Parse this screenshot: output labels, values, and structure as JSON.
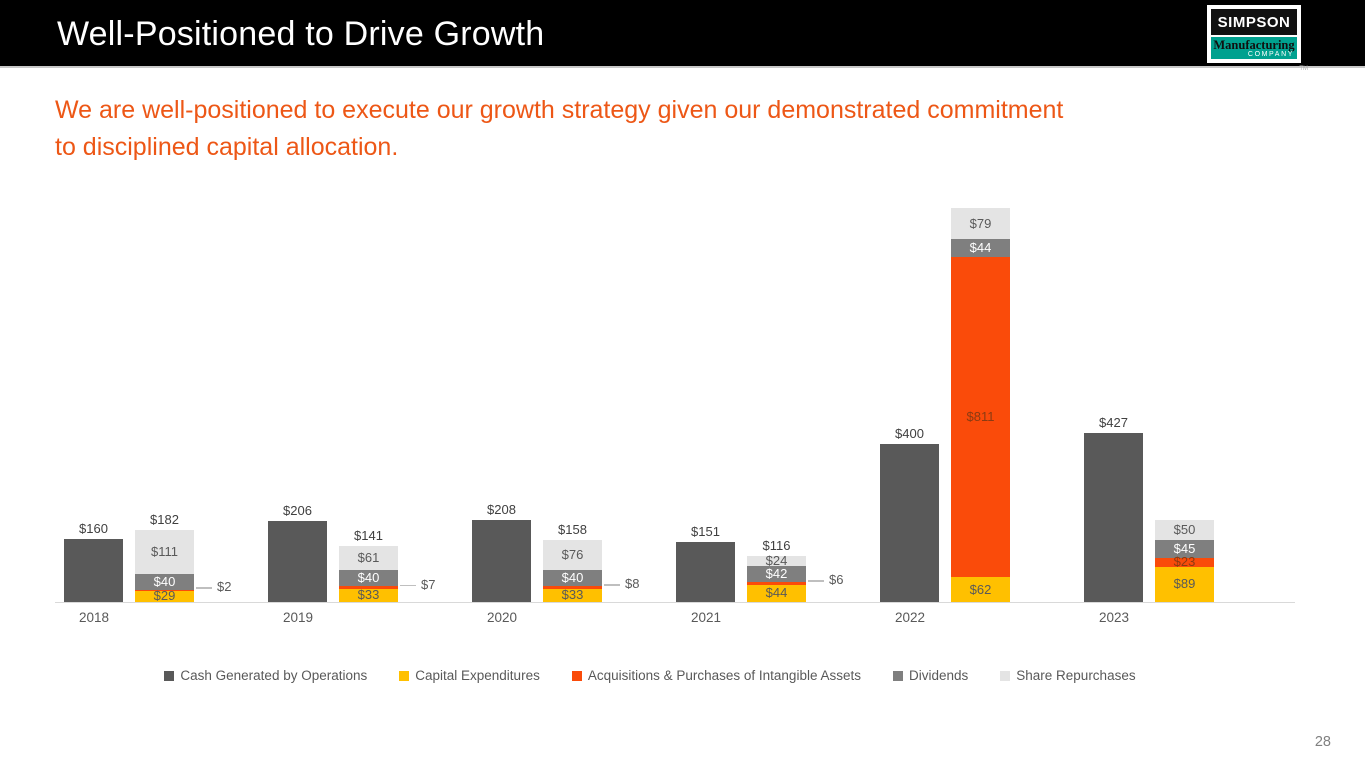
{
  "header": {
    "title": "Well-Positioned to Drive Growth"
  },
  "logo": {
    "line1": "SIMPSON",
    "line2": "Manufacturing",
    "line3": "COMPANY",
    "tm": "TM"
  },
  "subtitle": {
    "line1": "We are well-positioned to execute our growth strategy given our demonstrated commitment",
    "line2": "to disciplined capital allocation."
  },
  "page_number": "28",
  "colors": {
    "ops": "#595959",
    "capex": "#FFC000",
    "acq": "#FA4B0A",
    "div": "#7F7F7F",
    "repurch": "#E4E4E4",
    "segment_label_on_capex": "#595959",
    "segment_label_on_acq": "#8A3B12",
    "segment_label_on_div": "#FFFFFF",
    "segment_label_on_repurch": "#595959",
    "total_label": "#404040",
    "outside_label": "#595959",
    "connector": "#BFBFBF",
    "accent_orange": "#ED5716",
    "logo_teal": "#00A18F"
  },
  "chart_data": {
    "type": "bar",
    "subtype": "per-year pair: single bar (operations) + stacked bar (uses of cash)",
    "categories": [
      "2018",
      "2019",
      "2020",
      "2021",
      "2022",
      "2023"
    ],
    "series": [
      {
        "name": "Cash Generated by Operations",
        "color_key": "ops",
        "stacked": false,
        "values": [
          160,
          206,
          208,
          151,
          400,
          427
        ]
      },
      {
        "name": "Capital Expenditures",
        "color_key": "capex",
        "stacked": true,
        "values": [
          29,
          33,
          33,
          44,
          62,
          89
        ]
      },
      {
        "name": "Acquisitions & Purchases of Intangible Assets",
        "color_key": "acq",
        "stacked": true,
        "values": [
          2,
          7,
          8,
          6,
          811,
          23
        ]
      },
      {
        "name": "Dividends",
        "color_key": "div",
        "stacked": true,
        "values": [
          40,
          40,
          40,
          42,
          44,
          45
        ]
      },
      {
        "name": "Share Repurchases",
        "color_key": "repurch",
        "stacked": true,
        "values": [
          111,
          61,
          76,
          24,
          79,
          50
        ]
      }
    ],
    "ops_total_labels": [
      "$160",
      "$206",
      "$208",
      "$151",
      "$400",
      "$427"
    ],
    "stack_total_labels": [
      "$182",
      "$141",
      "$158",
      "$116",
      null,
      null
    ],
    "acq_label_outside": [
      true,
      true,
      true,
      true,
      false,
      false
    ],
    "value_prefix": "$",
    "xlabel": "",
    "ylabel": "",
    "grid": false,
    "y_axis_shown": false,
    "legend_position": "bottom"
  }
}
